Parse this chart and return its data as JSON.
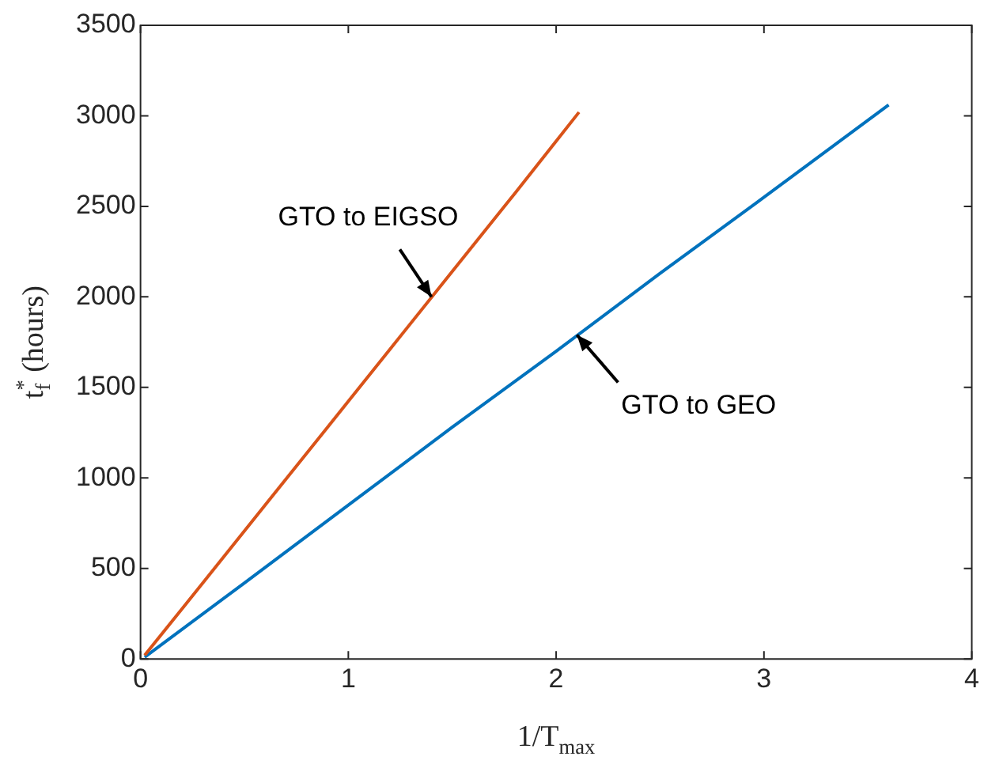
{
  "chart_data": {
    "type": "line",
    "xlabel": "1/T$_{max}$",
    "ylabel": "t$_{f}$$^{*}$ (hours)",
    "xlim": [
      0,
      4
    ],
    "xticks": [
      0,
      1,
      2,
      3,
      4
    ],
    "ylim": [
      0,
      3500
    ],
    "yticks": [
      0,
      500,
      1000,
      1500,
      2000,
      2500,
      3000,
      3500
    ],
    "grid": false,
    "legend": false,
    "marker": "none",
    "line_style": "solid",
    "series": [
      {
        "color": "#d95319",
        "x": [
          0.02,
          0.3,
          0.6,
          0.9,
          1.2,
          1.5,
          1.8,
          2.0,
          2.11
        ],
        "values": [
          20,
          420,
          850,
          1280,
          1710,
          2140,
          2570,
          2860,
          3020
        ]
      },
      {
        "color": "#0072bd",
        "x": [
          0.02,
          0.5,
          1.0,
          1.5,
          2.0,
          2.5,
          3.0,
          3.6
        ],
        "values": [
          10,
          420,
          850,
          1280,
          1700,
          2130,
          2550,
          3060
        ]
      }
    ],
    "annotations": [
      {
        "text": "GTO to EIGSO",
        "x": 1.4,
        "y": 2000
      },
      {
        "text": "GTO to GEO",
        "x": 2.1,
        "y": 1790
      }
    ]
  }
}
